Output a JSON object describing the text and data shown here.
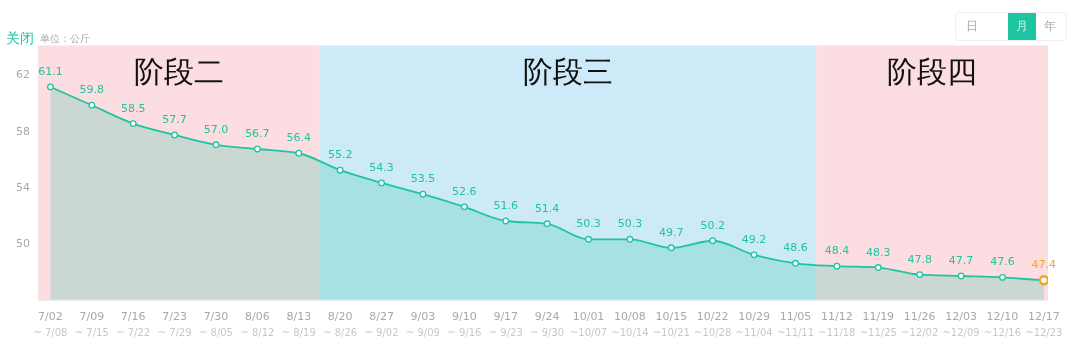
{
  "chart_data": {
    "type": "area",
    "ylabel": "单位：公斤",
    "annotations": [
      "关闭",
      "日",
      "月",
      "年"
    ],
    "categories": [
      "7/02\n~ 7/08",
      "7/09\n~ 7/15",
      "7/16\n~ 7/22",
      "7/23\n~ 7/29",
      "7/30\n~ 8/05",
      "8/06\n~ 8/12",
      "8/13\n~ 8/19",
      "8/20\n~ 8/26",
      "8/27\n~ 9/02",
      "9/03\n~ 9/09",
      "9/10\n~ 9/16",
      "9/17\n~ 9/23",
      "9/24\n~ 9/30",
      "10/01\n~10/07",
      "10/08\n~10/14",
      "10/15\n~10/21",
      "10/22\n~10/28",
      "10/29\n~11/04",
      "11/05\n~11/11",
      "11/12\n~11/18",
      "11/19\n~11/25",
      "11/26\n~12/02",
      "12/03\n~12/09",
      "12/10\n~12/16",
      "12/17\n~12/23"
    ],
    "series": [
      {
        "color": "#1fc4a0",
        "values": [
          61.1,
          59.8,
          58.5,
          57.7,
          57.0,
          56.7,
          56.4,
          55.2,
          54.3,
          53.5,
          52.6,
          51.6,
          51.4,
          50.3,
          50.3,
          49.7,
          50.2,
          49.2,
          48.6,
          48.4,
          48.3,
          47.8,
          47.7,
          47.6,
          47.4
        ],
        "value_labels": [
          "61.1",
          "59.8",
          "58.5",
          "57.7",
          "57.0",
          "56.7",
          "56.4",
          "55.2",
          "54.3",
          "53.5",
          "52.6",
          "51.6",
          "51.4",
          "50.3",
          "50.3",
          "49.7",
          "50.2",
          "49.2",
          "48.6",
          "48.4",
          "48.3",
          "47.8",
          "47.7",
          "47.6",
          "47.4"
        ],
        "colors": [
          "#1fc4a0",
          "#1fc4a0",
          "#1fc4a0",
          "#1fc4a0",
          "#1fc4a0",
          "#1fc4a0",
          "#1fc4a0",
          "#1fc4a0",
          "#1fc4a0",
          "#1fc4a0",
          "#1fc4a0",
          "#1fc4a0",
          "#1fc4a0",
          "#1fc4a0",
          "#1fc4a0",
          "#1fc4a0",
          "#1fc4a0",
          "#1fc4a0",
          "#1fc4a0",
          "#1fc4a0",
          "#1fc4a0",
          "#1fc4a0",
          "#1fc4a0",
          "#1fc4a0",
          "#f5a623"
        ]
      }
    ],
    "ylim": [
      46,
      64
    ],
    "yticks": [
      50,
      54,
      58,
      62
    ],
    "grid": "y",
    "marker": "circle",
    "bands": [
      {
        "axis": "x",
        "from": "7/02\n~ 7/08",
        "to": "8/13\n~ 8/19",
        "label": "阶段二",
        "color": "#fcdde2"
      },
      {
        "axis": "x",
        "from": "8/20\n~ 8/26",
        "to": "11/05\n~11/11",
        "label": "阶段三",
        "color": "#cdeaf8"
      },
      {
        "axis": "x",
        "from": "11/12\n~11/18",
        "to": "12/17\n~12/23",
        "label": "阶段四",
        "color": "#fcdde2"
      }
    ]
  }
}
